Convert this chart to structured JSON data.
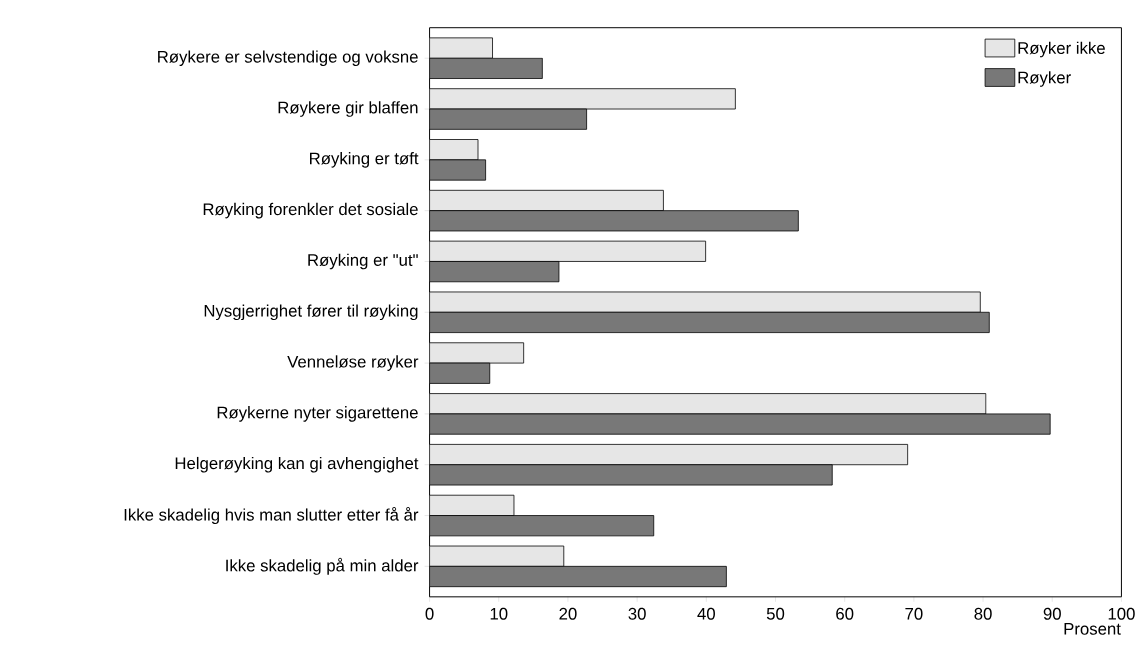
{
  "chart_data": {
    "type": "bar",
    "orientation": "horizontal",
    "xlabel": "Prosent",
    "categories": [
      "Røykere er selvstendige og voksne",
      "Røykere gir blaffen",
      "Røyking er tøft",
      "Røyking forenkler det sosiale",
      "Røyking er \"ut\"",
      "Nysgjerrighet fører til røyking",
      "Venneløse røyker",
      "Røykerne nyter sigarettene",
      "Helgerøyking kan gi avhengighet",
      "Ikke skadelig hvis man slutter etter få år",
      "Ikke skadelig på min alder"
    ],
    "series": [
      {
        "name": "Røyker ikke",
        "color": "#e6e6e6",
        "values": [
          9.1,
          44.2,
          7.0,
          33.8,
          39.9,
          79.6,
          13.6,
          80.4,
          69.1,
          12.2,
          19.4
        ]
      },
      {
        "name": "Røyker",
        "color": "#787878",
        "values": [
          16.3,
          22.7,
          8.1,
          53.3,
          18.7,
          80.9,
          8.7,
          89.7,
          58.2,
          32.4,
          42.9
        ]
      }
    ],
    "xlim": [
      0,
      100
    ],
    "xticks": [
      0,
      10,
      20,
      30,
      40,
      50,
      60,
      70,
      80,
      90,
      100
    ],
    "legend": "top right"
  }
}
